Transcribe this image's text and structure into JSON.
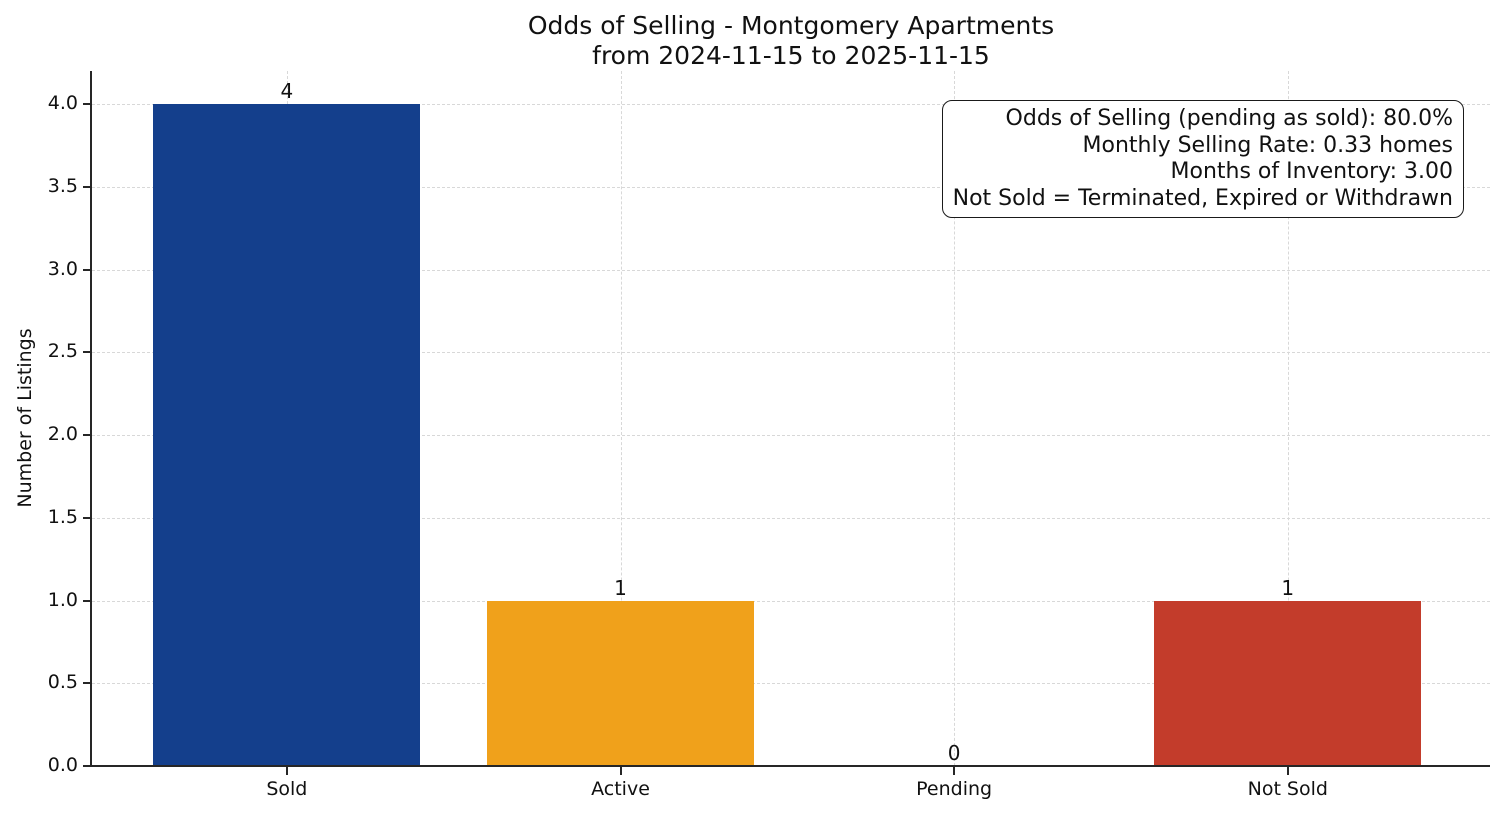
{
  "chart_data": {
    "type": "bar",
    "title": "Odds of Selling - Montgomery Apartments",
    "subtitle": "from 2024-11-15 to 2025-11-15",
    "categories": [
      "Sold",
      "Active",
      "Pending",
      "Not Sold"
    ],
    "values": [
      4,
      1,
      0,
      1
    ],
    "value_labels": [
      "4",
      "1",
      "0",
      "1"
    ],
    "bar_colors": [
      "#143f8c",
      "#f0a11b",
      "#808080",
      "#c33c2b"
    ],
    "ylabel": "Number of Listings",
    "xlabel": "",
    "ylim": [
      0,
      4.2
    ],
    "yticks": [
      0.0,
      0.5,
      1.0,
      1.5,
      2.0,
      2.5,
      3.0,
      3.5,
      4.0
    ],
    "ytick_labels": [
      "0.0",
      "0.5",
      "1.0",
      "1.5",
      "2.0",
      "2.5",
      "3.0",
      "3.5",
      "4.0"
    ],
    "grid": "dashed both-axes light-gray",
    "legend_position": "none",
    "annotation_lines": [
      "Odds of Selling (pending as sold): 80.0%",
      "Monthly Selling Rate: 0.33 homes",
      "Months of Inventory: 3.00",
      "Not Sold = Terminated, Expired or Withdrawn"
    ]
  },
  "colors": {
    "background": "#ffffff",
    "spine": "#262626",
    "grid": "#d8d8d8",
    "text": "#111111",
    "annotation_border": "#1a1a1a",
    "bar_sold": "#143f8c",
    "bar_active": "#f0a11b",
    "bar_not_sold": "#c33c2b"
  }
}
